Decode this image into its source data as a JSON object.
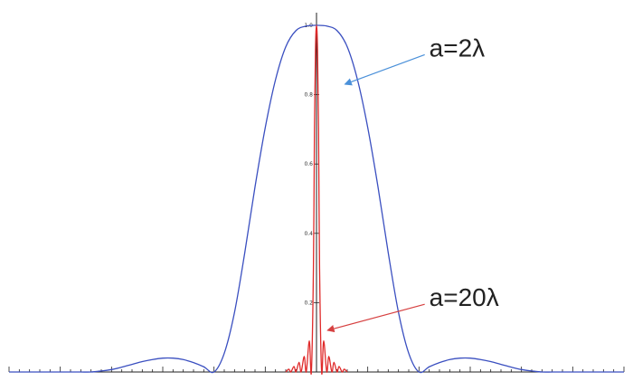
{
  "chart_data": {
    "type": "line",
    "title": "",
    "xlabel": "",
    "ylabel": "",
    "xlim": [
      -3.0,
      3.0
    ],
    "ylim": [
      0,
      1.0
    ],
    "y_ticks": [
      {
        "value": 0.2,
        "label": "0.2"
      },
      {
        "value": 0.4,
        "label": "0.4"
      },
      {
        "value": 0.6,
        "label": "0.6"
      },
      {
        "value": 0.8,
        "label": "0.8"
      },
      {
        "value": 1.0,
        "label": "1.0"
      }
    ],
    "x_minor_tick_step": 0.1,
    "x_major_tick_step": 0.5,
    "grid": false,
    "legend": "none",
    "series": [
      {
        "name": "",
        "color": "#3a4fc0",
        "x": [
          -3.0,
          -2.9,
          -2.8,
          -2.7,
          -2.6,
          -2.5,
          -2.4,
          -2.3,
          -2.2,
          -2.1,
          -2.0,
          -1.9,
          -1.8,
          -1.7,
          -1.6,
          -1.5,
          -1.4,
          -1.3,
          -1.2,
          -1.1,
          -1.0,
          -0.9,
          -0.8,
          -0.7,
          -0.6,
          -0.5,
          -0.4,
          -0.3,
          -0.2,
          -0.1,
          0.0,
          0.1,
          0.2,
          0.3,
          0.4,
          0.5,
          0.6,
          0.7,
          0.8,
          0.9,
          1.0,
          1.1,
          1.2,
          1.3,
          1.4,
          1.5,
          1.6,
          1.7,
          1.8,
          1.9,
          2.0,
          2.1,
          2.2,
          2.3,
          2.4,
          2.5,
          2.6,
          2.7,
          2.8,
          2.9,
          3.0
        ],
        "y": [
          0.0,
          0.0,
          0.0,
          0.0,
          0.0,
          0.0,
          0.0,
          0.0,
          0.0,
          0.003,
          0.007,
          0.014,
          0.022,
          0.03,
          0.036,
          0.04,
          0.04,
          0.036,
          0.027,
          0.015,
          0.0,
          0.054,
          0.172,
          0.344,
          0.534,
          0.705,
          0.843,
          0.938,
          0.985,
          0.998,
          1.0,
          0.998,
          0.985,
          0.938,
          0.843,
          0.705,
          0.534,
          0.344,
          0.172,
          0.054,
          0.0,
          0.015,
          0.027,
          0.036,
          0.04,
          0.04,
          0.036,
          0.03,
          0.022,
          0.014,
          0.007,
          0.003,
          0.0,
          0.0,
          0.0,
          0.0,
          0.0,
          0.0,
          0.0,
          0.0,
          0.0
        ]
      },
      {
        "name": "",
        "color": "#e02a2a",
        "x": [
          -0.3,
          -0.27,
          -0.25,
          -0.22,
          -0.2,
          -0.17,
          -0.15,
          -0.12,
          -0.1,
          -0.07,
          -0.05,
          -0.03,
          -0.02,
          -0.01,
          0.0,
          0.01,
          0.02,
          0.03,
          0.05,
          0.07,
          0.1,
          0.12,
          0.15,
          0.17,
          0.2,
          0.22,
          0.25,
          0.27,
          0.3
        ],
        "y": [
          0.0,
          0.008,
          0.0,
          0.016,
          0.0,
          0.028,
          0.0,
          0.045,
          0.0,
          0.09,
          0.0,
          0.3,
          0.7,
          0.93,
          1.0,
          0.93,
          0.7,
          0.3,
          0.0,
          0.09,
          0.0,
          0.045,
          0.0,
          0.028,
          0.0,
          0.016,
          0.0,
          0.008,
          0.0
        ]
      }
    ],
    "annotations": [
      {
        "text": "a=2λ",
        "color": "#4a90d9",
        "series_index": 0,
        "point": [
          0.25,
          0.83
        ],
        "label_at": [
          1.1,
          0.91
        ]
      },
      {
        "text": "a=20λ",
        "color": "#d64040",
        "series_index": 1,
        "point": [
          0.08,
          0.12
        ],
        "label_at": [
          1.1,
          0.19
        ]
      }
    ]
  }
}
